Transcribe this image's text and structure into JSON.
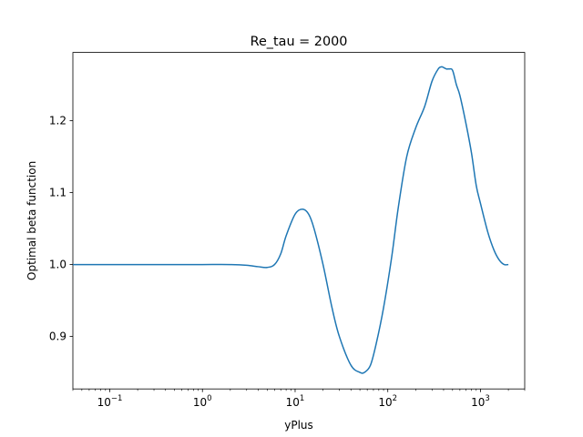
{
  "chart_data": {
    "type": "line",
    "title": "Re_tau = 2000",
    "xlabel": "yPlus",
    "ylabel": "Optimal beta function",
    "xscale": "log",
    "xlim": [
      0.04,
      3000
    ],
    "ylim": [
      0.827,
      1.295
    ],
    "grid": false,
    "xticks": [
      {
        "value": 0.1,
        "base": "10",
        "exp": "−1"
      },
      {
        "value": 1,
        "base": "10",
        "exp": "0"
      },
      {
        "value": 10,
        "base": "10",
        "exp": "1"
      },
      {
        "value": 100,
        "base": "10",
        "exp": "2"
      },
      {
        "value": 1000,
        "base": "10",
        "exp": "3"
      }
    ],
    "yticks": [
      {
        "value": 0.9,
        "label": "0.9"
      },
      {
        "value": 1.0,
        "label": "1.0"
      },
      {
        "value": 1.1,
        "label": "1.1"
      },
      {
        "value": 1.2,
        "label": "1.2"
      }
    ],
    "series": [
      {
        "color": "#1f77b4",
        "x": [
          0.04,
          0.1,
          0.5,
          1,
          2,
          3,
          4,
          5,
          6,
          7,
          8,
          10,
          12,
          14,
          16,
          20,
          25,
          30,
          40,
          50,
          56,
          65,
          75,
          90,
          110,
          130,
          160,
          200,
          250,
          300,
          350,
          380,
          400,
          430,
          460,
          500,
          550,
          600,
          700,
          800,
          900,
          1000,
          1200,
          1400,
          1600,
          1800,
          2000
        ],
        "y": [
          1.0,
          1.0,
          1.0,
          1.0,
          1.0,
          0.999,
          0.997,
          0.996,
          1.0,
          1.015,
          1.04,
          1.07,
          1.077,
          1.07,
          1.05,
          1.0,
          0.94,
          0.9,
          0.86,
          0.85,
          0.85,
          0.86,
          0.89,
          0.94,
          1.01,
          1.08,
          1.15,
          1.19,
          1.22,
          1.255,
          1.272,
          1.275,
          1.274,
          1.272,
          1.272,
          1.27,
          1.25,
          1.235,
          1.195,
          1.155,
          1.11,
          1.085,
          1.045,
          1.02,
          1.006,
          1.0,
          1.0
        ]
      }
    ]
  }
}
